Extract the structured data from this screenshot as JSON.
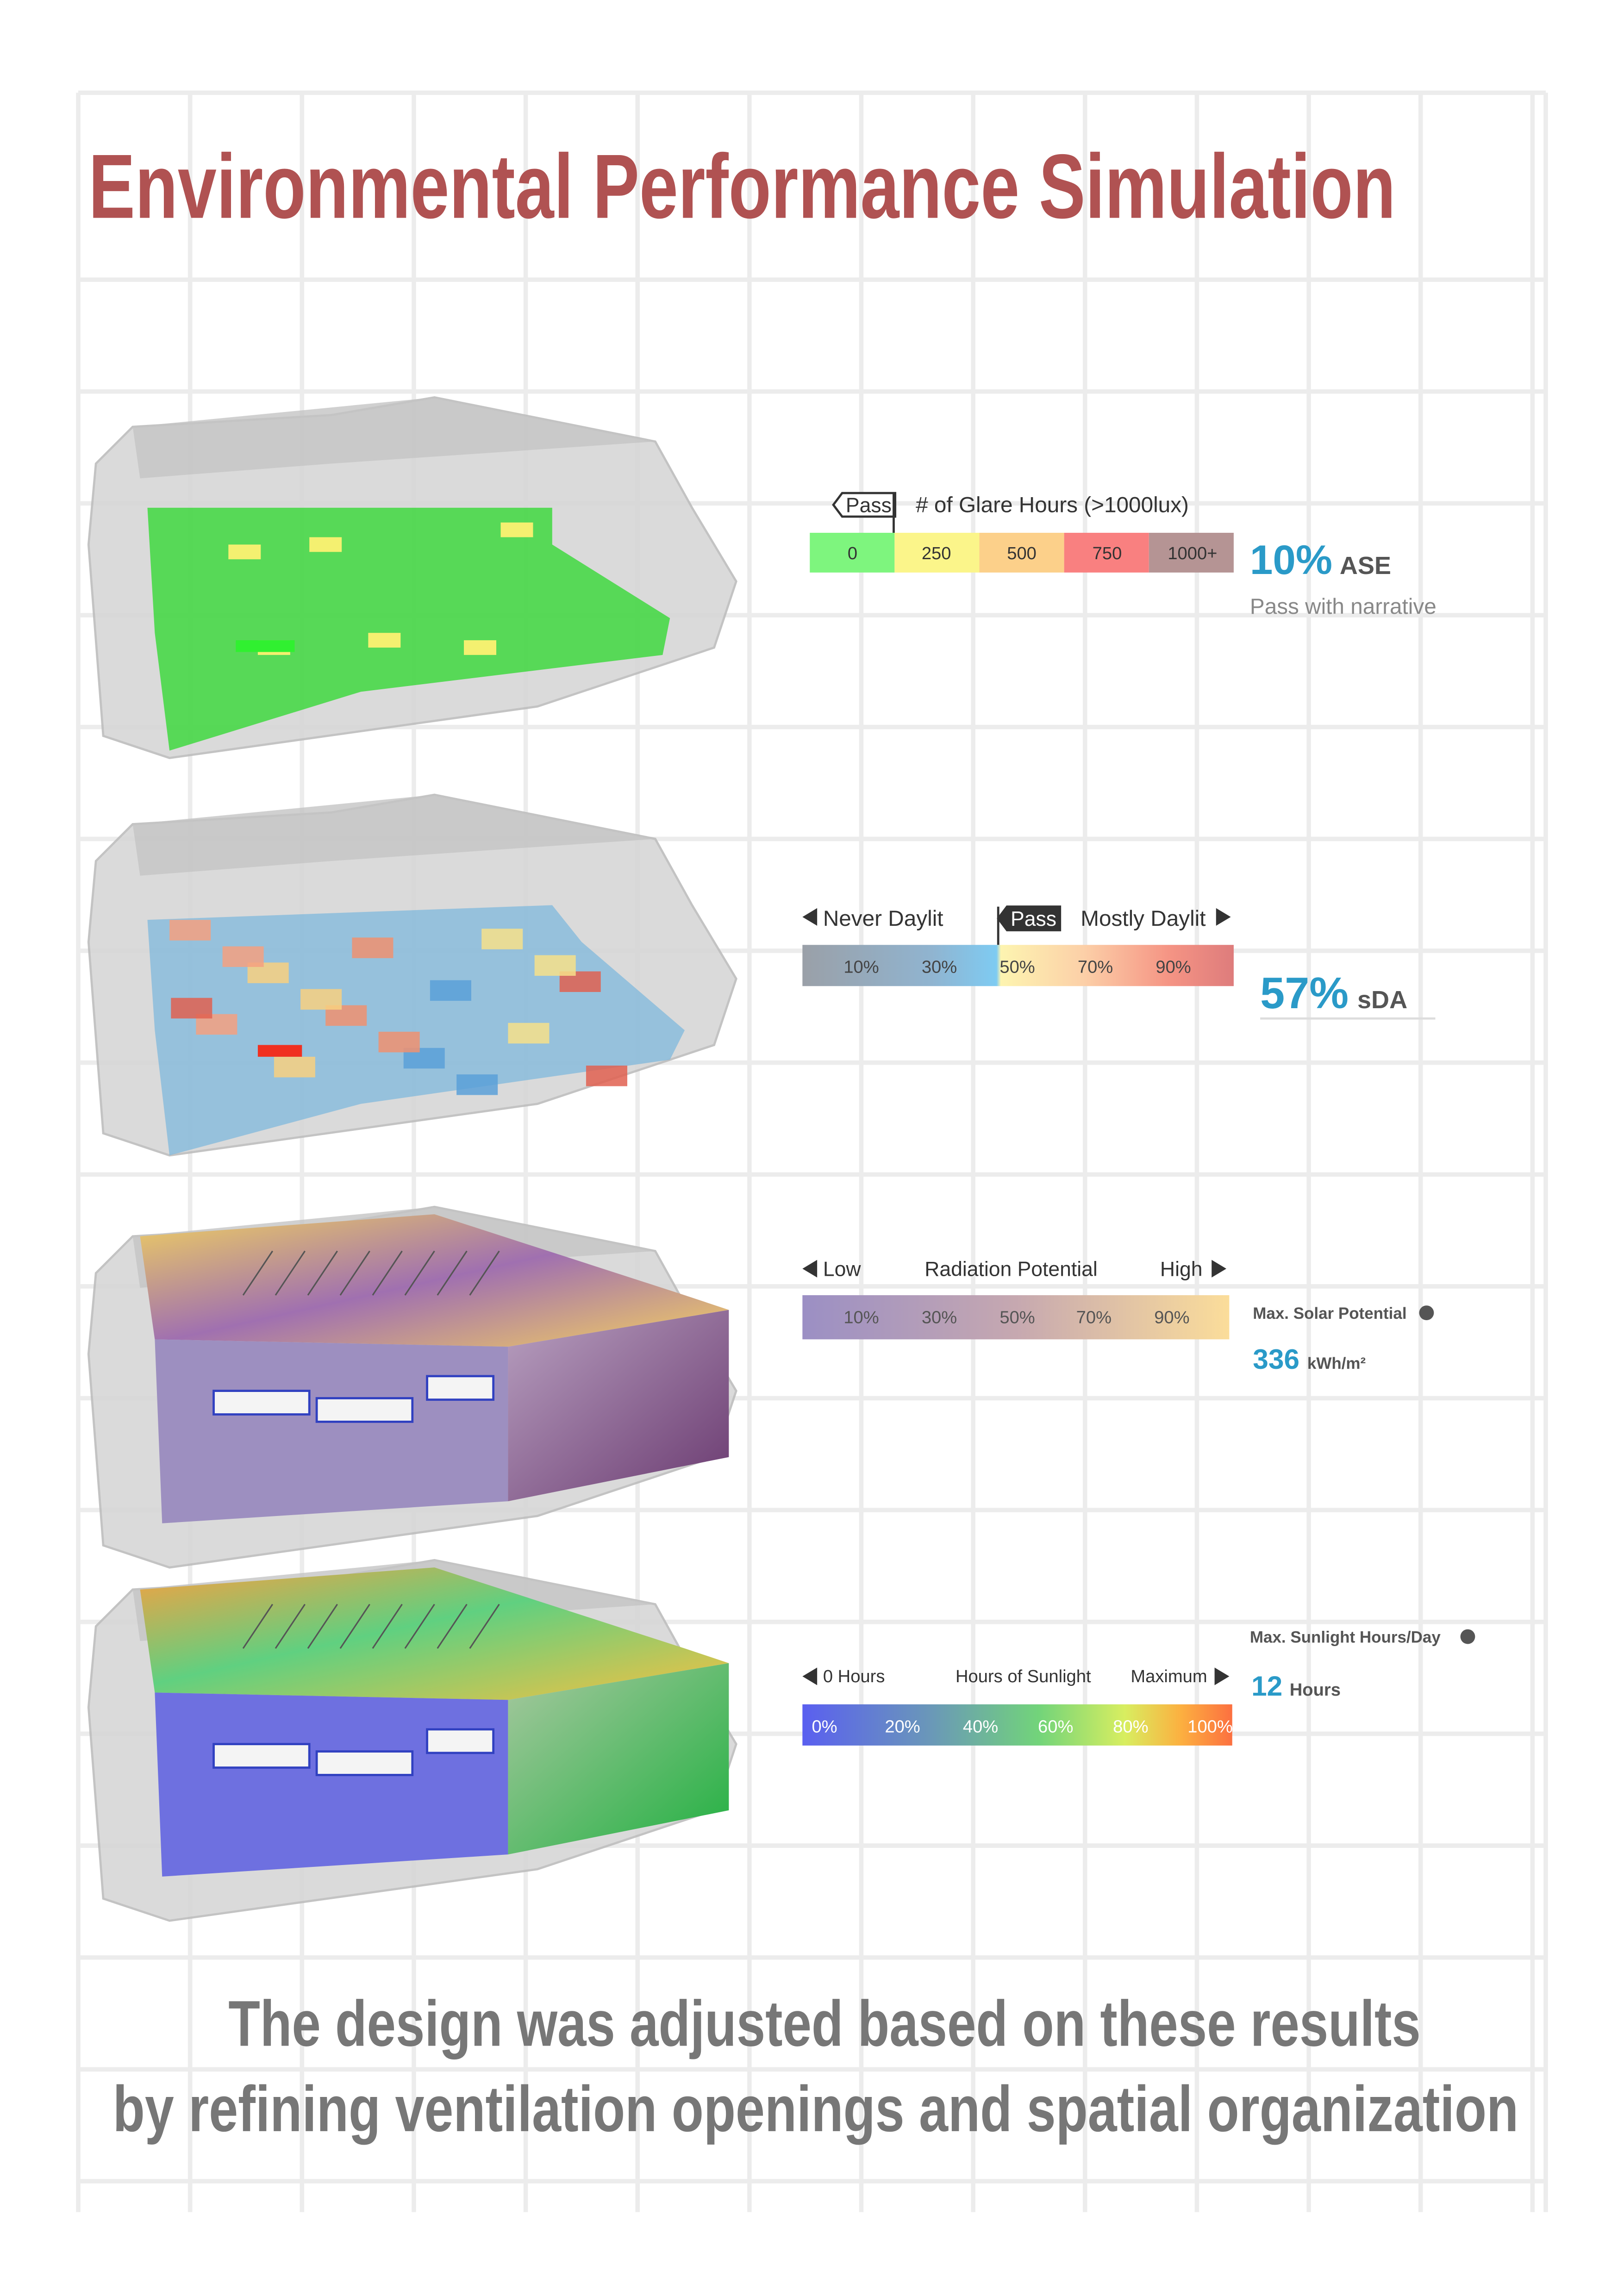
{
  "title": "Environmental Performance Simulation",
  "panels": [
    {
      "legend_left": "Pass",
      "legend_title": "# of Glare Hours (>1000lux)",
      "cells": [
        "0",
        "250",
        "500",
        "750",
        "1000+"
      ],
      "metric_value": "10%",
      "metric_unit": "ASE",
      "note": "Pass with narrative"
    },
    {
      "legend_left": "Never Daylit",
      "legend_mid": "Pass",
      "legend_right": "Mostly Daylit",
      "cells": [
        "10%",
        "30%",
        "50%",
        "70%",
        "90%"
      ],
      "metric_value": "57%",
      "metric_unit": "sDA"
    },
    {
      "legend_left": "Low",
      "legend_title": "Radiation Potential",
      "legend_right": "High",
      "cells": [
        "10%",
        "30%",
        "50%",
        "70%",
        "90%"
      ],
      "metric_label": "Max. Solar Potential",
      "metric_value": "336",
      "metric_unit": "kWh/m²"
    },
    {
      "legend_left": "0 Hours",
      "legend_title": "Hours of Sunlight",
      "legend_right": "Maximum",
      "cells": [
        "0%",
        "20%",
        "40%",
        "60%",
        "80%",
        "100%"
      ],
      "metric_label": "Max. Sunlight Hours/Day",
      "metric_value": "12",
      "metric_unit": "Hours"
    }
  ],
  "footer": [
    "The design was adjusted based on these results",
    "by refining ventilation openings and spatial organization"
  ]
}
